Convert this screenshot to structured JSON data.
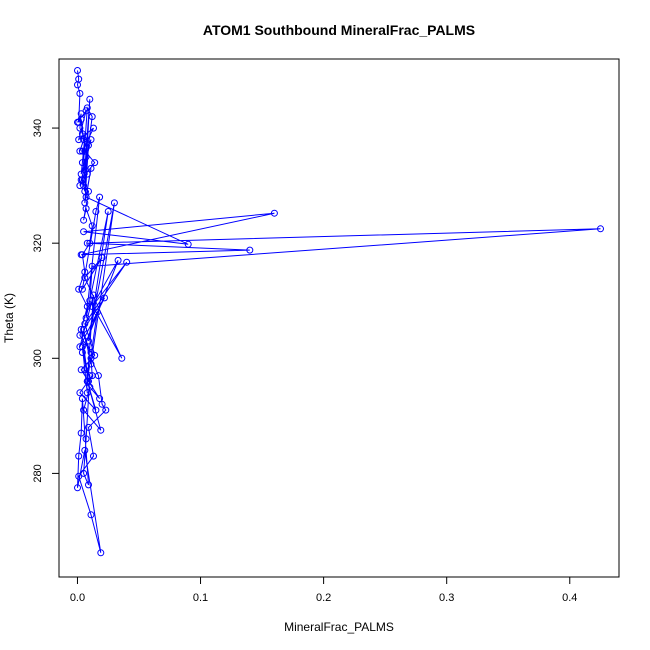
{
  "chart_data": {
    "type": "line",
    "title": "ATOM1 Southbound MineralFrac_PALMS",
    "xlabel": "MineralFrac_PALMS",
    "ylabel": "Theta (K)",
    "xlim": [
      -0.015,
      0.44
    ],
    "ylim": [
      262,
      352
    ],
    "x_ticks": [
      0,
      0.1,
      0.2,
      0.3,
      0.4
    ],
    "x_tick_labels": [
      "0.0",
      "0.1",
      "0.2",
      "0.3",
      "0.4"
    ],
    "y_ticks": [
      280,
      300,
      320,
      340
    ],
    "y_tick_labels": [
      "280",
      "300",
      "320",
      "340"
    ],
    "grid": false,
    "legend": "none",
    "series": [
      {
        "color": "#0000ff",
        "marker": "open-circle",
        "line": true,
        "x": [
          0.0,
          0.001,
          0.0,
          0.002,
          0.001,
          0.003,
          0.002,
          0.004,
          0.003,
          0.005,
          0.002,
          0.006,
          0.004,
          0.003,
          0.007,
          0.005,
          0.01,
          0.006,
          0.004,
          0.008,
          0.012,
          0.009,
          0.006,
          0.011,
          0.007,
          0.09,
          0.005,
          0.16,
          0.003,
          0.14,
          0.008,
          0.425,
          0.012,
          0.01,
          0.036,
          0.006,
          0.02,
          0.004,
          0.015,
          0.018,
          0.007,
          0.025,
          0.009,
          0.03,
          0.011,
          0.005,
          0.022,
          0.002,
          0.013,
          0.008,
          0.016,
          0.004,
          0.033,
          0.012,
          0.04,
          0.006,
          0.014,
          0.003,
          0.018,
          0.01,
          0.005,
          0.019,
          0.008,
          0.015,
          0.002,
          0.012,
          0.011,
          0.017,
          0.02,
          0.023,
          0.009,
          0.013,
          0.001,
          0.011,
          0.019,
          0.006,
          0.0,
          0.001,
          0.003,
          0.004,
          0.009,
          0.005,
          0.007,
          0.01,
          0.006,
          0.008,
          0.004,
          0.009,
          0.003,
          0.011,
          0.002,
          0.008,
          0.001,
          0.006,
          0.004,
          0.01,
          0.012,
          0.007,
          0.005,
          0.009,
          0.003,
          0.014,
          0.006,
          0.011,
          0.002,
          0.008,
          0.004,
          0.013,
          0.001,
          0.007,
          0.0
        ],
        "y": [
          350.0,
          348.5,
          347.5,
          346.0,
          341.0,
          342.5,
          340.0,
          339.0,
          341.5,
          338.0,
          336.0,
          338.5,
          334.0,
          332.0,
          335.0,
          330.0,
          345.0,
          329.0,
          331.0,
          343.5,
          342.0,
          337.0,
          327.0,
          333.0,
          328.0,
          319.8,
          322.0,
          325.2,
          318.0,
          318.8,
          320.0,
          322.5,
          316.0,
          310.0,
          300.0,
          314.0,
          317.5,
          312.0,
          325.5,
          328.0,
          307.0,
          325.5,
          303.0,
          327.0,
          299.0,
          305.0,
          310.5,
          302.0,
          311.0,
          296.0,
          308.0,
          301.0,
          317.0,
          309.0,
          316.7,
          306.0,
          300.5,
          298.0,
          293.0,
          295.0,
          291.0,
          287.5,
          296.0,
          291.0,
          294.0,
          297.0,
          300.0,
          297.0,
          292.0,
          291.0,
          288.0,
          283.0,
          279.5,
          272.8,
          266.2,
          284.0,
          277.5,
          283.0,
          287.0,
          293.0,
          278.0,
          280.0,
          286.0,
          297.0,
          298.0,
          294.0,
          302.0,
          296.0,
          305.0,
          301.0,
          304.0,
          309.0,
          312.0,
          315.0,
          318.0,
          320.0,
          323.0,
          326.0,
          324.0,
          329.0,
          331.0,
          334.0,
          336.0,
          338.0,
          330.0,
          332.0,
          336.0,
          340.0,
          338.0,
          343.0,
          341.0
        ]
      }
    ]
  }
}
